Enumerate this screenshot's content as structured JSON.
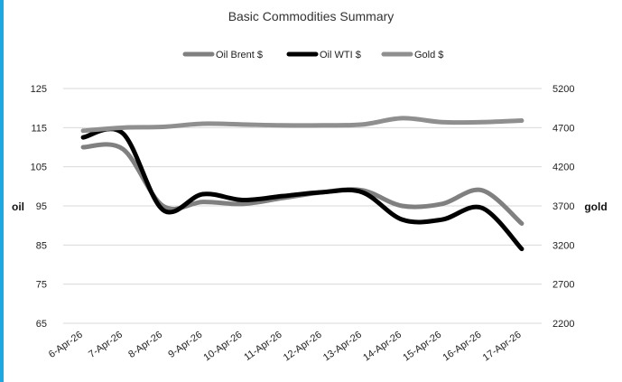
{
  "chart_data": {
    "type": "line",
    "title": "Basic Commodities Summary",
    "categories": [
      "6-Apr-26",
      "7-Apr-26",
      "8-Apr-26",
      "9-Apr-26",
      "10-Apr-26",
      "11-Apr-26",
      "12-Apr-26",
      "13-Apr-26",
      "14-Apr-26",
      "15-Apr-26",
      "16-Apr-26",
      "17-Apr-26"
    ],
    "ylabel": "oil",
    "y2label": "gold",
    "ylim": [
      65,
      125
    ],
    "y2lim": [
      2200,
      5200
    ],
    "yticks": [
      125,
      115,
      105,
      95,
      85,
      75,
      65
    ],
    "y2ticks": [
      5200,
      4700,
      4200,
      3700,
      3200,
      2700,
      2200
    ],
    "legend_position": "top",
    "grid": true,
    "series": [
      {
        "name": "Oil Brent $",
        "axis": "left",
        "color": "#808080",
        "values": [
          110,
          109.5,
          95,
          96,
          95.5,
          97,
          98.5,
          99,
          95,
          95.5,
          99,
          90.5
        ]
      },
      {
        "name": "Oil WTI $",
        "axis": "left",
        "color": "#000000",
        "values": [
          112.5,
          113.5,
          94,
          98,
          96.5,
          97.5,
          98.5,
          98.5,
          91.5,
          91.5,
          94.5,
          84
        ]
      },
      {
        "name": "Gold $",
        "axis": "right",
        "color": "#8f8f8f",
        "values": [
          4660,
          4700,
          4710,
          4750,
          4740,
          4730,
          4730,
          4740,
          4820,
          4770,
          4770,
          4790
        ]
      }
    ]
  }
}
